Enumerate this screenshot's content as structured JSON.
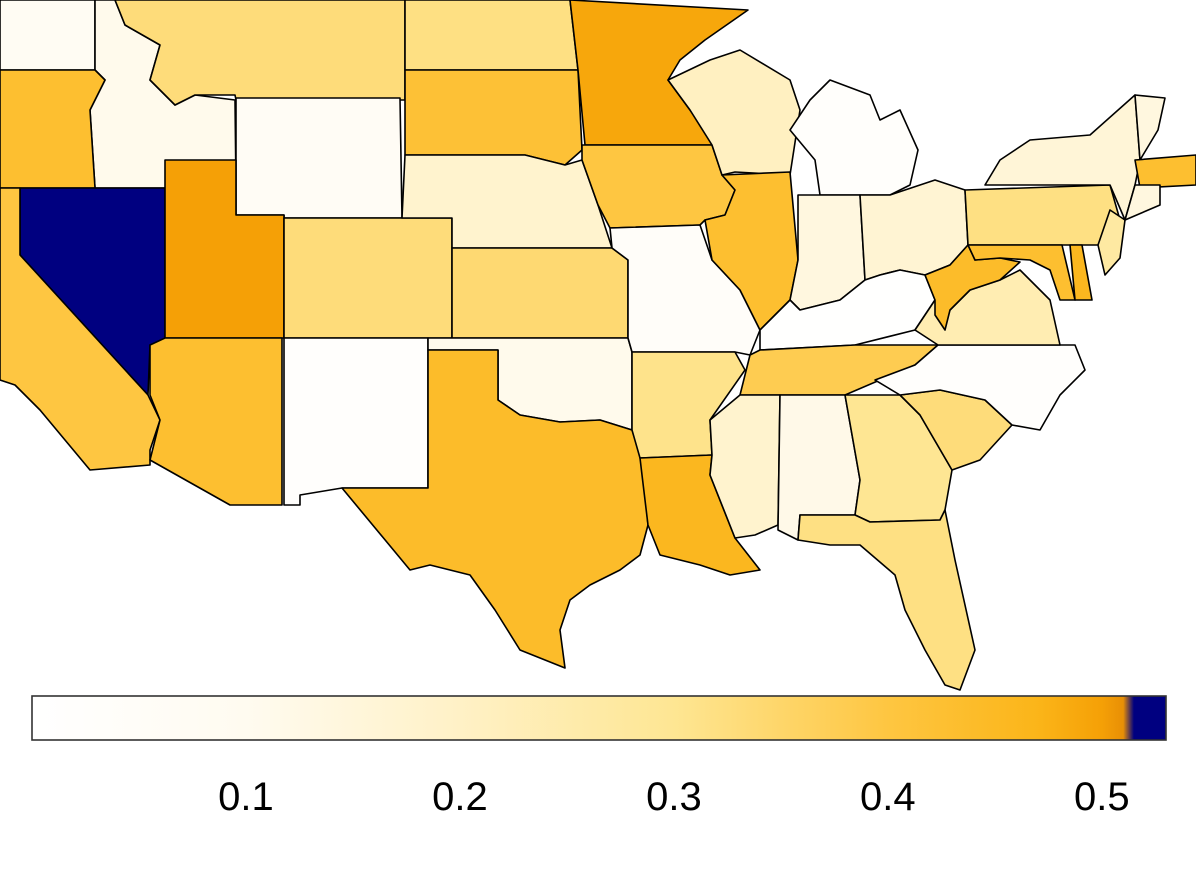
{
  "map": {
    "region": "contiguous United States",
    "colorscale": {
      "min": 0.0,
      "max": 0.53,
      "stops": [
        {
          "value": 0.0,
          "color": "#ffffff"
        },
        {
          "value": 0.1,
          "color": "#fffbf0"
        },
        {
          "value": 0.2,
          "color": "#fff1c6"
        },
        {
          "value": 0.3,
          "color": "#fee693"
        },
        {
          "value": 0.4,
          "color": "#fec641"
        },
        {
          "value": 0.47,
          "color": "#fbb519"
        },
        {
          "value": 0.5,
          "color": "#f5a006"
        },
        {
          "value": 0.51,
          "color": "#e88f05"
        },
        {
          "value": 0.515,
          "color": "#000080"
        },
        {
          "value": 0.53,
          "color": "#000080"
        }
      ]
    },
    "states": [
      {
        "name": "Washington",
        "value": 0.08
      },
      {
        "name": "Oregon",
        "value": 0.43
      },
      {
        "name": "California",
        "value": 0.4
      },
      {
        "name": "Nevada",
        "value": 0.53
      },
      {
        "name": "Idaho",
        "value": 0.11
      },
      {
        "name": "Montana",
        "value": 0.33
      },
      {
        "name": "Wyoming",
        "value": 0.07
      },
      {
        "name": "Utah",
        "value": 0.5
      },
      {
        "name": "Arizona",
        "value": 0.43
      },
      {
        "name": "Colorado",
        "value": 0.33
      },
      {
        "name": "New Mexico",
        "value": 0.02
      },
      {
        "name": "North Dakota",
        "value": 0.32
      },
      {
        "name": "South Dakota",
        "value": 0.42
      },
      {
        "name": "Nebraska",
        "value": 0.18
      },
      {
        "name": "Kansas",
        "value": 0.34
      },
      {
        "name": "Oklahoma",
        "value": 0.11
      },
      {
        "name": "Texas",
        "value": 0.44
      },
      {
        "name": "Minnesota",
        "value": 0.49
      },
      {
        "name": "Iowa",
        "value": 0.4
      },
      {
        "name": "Missouri",
        "value": 0.04
      },
      {
        "name": "Arkansas",
        "value": 0.31
      },
      {
        "name": "Louisiana",
        "value": 0.46
      },
      {
        "name": "Wisconsin",
        "value": 0.21
      },
      {
        "name": "Illinois",
        "value": 0.43
      },
      {
        "name": "Michigan",
        "value": 0.03
      },
      {
        "name": "Indiana",
        "value": 0.14
      },
      {
        "name": "Ohio",
        "value": 0.17
      },
      {
        "name": "Kentucky",
        "value": 0.01
      },
      {
        "name": "Tennessee",
        "value": 0.38
      },
      {
        "name": "Mississippi",
        "value": 0.18
      },
      {
        "name": "Alabama",
        "value": 0.12
      },
      {
        "name": "Georgia",
        "value": 0.3
      },
      {
        "name": "Florida",
        "value": 0.32
      },
      {
        "name": "South Carolina",
        "value": 0.33
      },
      {
        "name": "North Carolina",
        "value": 0.02
      },
      {
        "name": "Virginia",
        "value": 0.24
      },
      {
        "name": "West Virginia",
        "value": 0.44
      },
      {
        "name": "Pennsylvania",
        "value": 0.32
      },
      {
        "name": "New York",
        "value": 0.16
      },
      {
        "name": "Maryland",
        "value": 0.43
      },
      {
        "name": "Delaware",
        "value": 0.46
      },
      {
        "name": "New Jersey",
        "value": 0.27
      },
      {
        "name": "Massachusetts",
        "value": 0.43
      },
      {
        "name": "Vermont",
        "value": 0.14
      },
      {
        "name": "Connecticut",
        "value": 0.14
      }
    ]
  },
  "legend": {
    "type": "continuous-colorbar",
    "placement": "bottom",
    "ticks": [
      {
        "value": 0.1,
        "label": "0.1"
      },
      {
        "value": 0.2,
        "label": "0.2"
      },
      {
        "value": 0.3,
        "label": "0.3"
      },
      {
        "value": 0.4,
        "label": "0.4"
      },
      {
        "value": 0.5,
        "label": "0.5"
      }
    ]
  }
}
